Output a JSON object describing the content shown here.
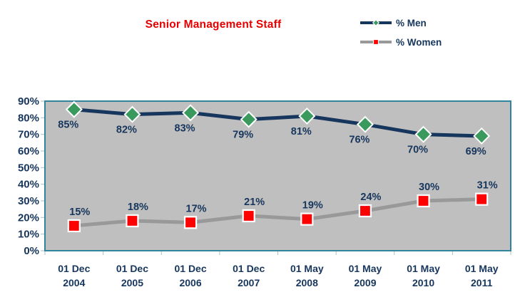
{
  "chart_data": {
    "type": "line",
    "title": "Senior Management Staff",
    "title_color": "#e60000",
    "categories": [
      "01 Dec 2004",
      "01 Dec 2005",
      "01 Dec 2006",
      "01 Dec 2007",
      "01 May 2008",
      "01 May 2009",
      "01 May 2010",
      "01 May 2011"
    ],
    "series": [
      {
        "name": "% Men",
        "values": [
          85,
          82,
          83,
          79,
          81,
          76,
          70,
          69
        ],
        "line_color": "#17365d",
        "marker": "diamond",
        "marker_fill": "#3a9a5e",
        "marker_outline": "#ffffff"
      },
      {
        "name": "% Women",
        "values": [
          15,
          18,
          17,
          21,
          19,
          24,
          30,
          31
        ],
        "line_color": "#999999",
        "marker": "square",
        "marker_fill": "#fe0000",
        "marker_outline": "#ffffff"
      }
    ],
    "ylim": [
      0,
      90
    ],
    "ytick_step": 10,
    "ytick_labels": [
      "0%",
      "10%",
      "20%",
      "30%",
      "40%",
      "50%",
      "60%",
      "70%",
      "80%",
      "90%"
    ],
    "data_label_format": "{value}%",
    "axis_label_color": "#17365d",
    "data_label_color": "#17365d",
    "plot_background": "#bfbfbf",
    "plot_border_color": "#31849b",
    "tick_color": "#a9bfc6",
    "grid": false,
    "legend_position": "top-right"
  }
}
